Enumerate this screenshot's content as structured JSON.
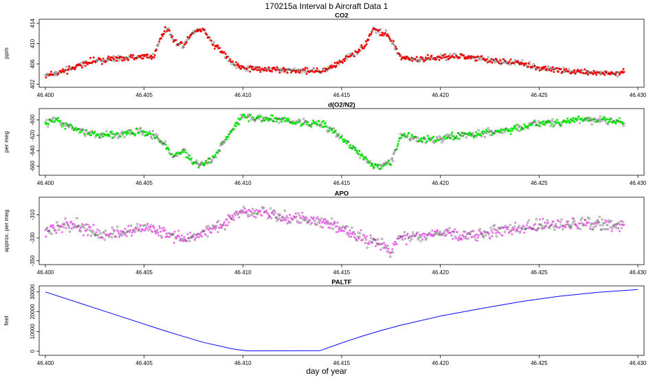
{
  "figure": {
    "title": "170215a   Interval b Aircraft Data 1",
    "xlabel": "day of year"
  },
  "chart_data": [
    {
      "type": "scatter",
      "title": "CO2",
      "ylabel": "ppm",
      "color": "#ff0000",
      "xlim": [
        46.4,
        46.43
      ],
      "ylim": [
        401.8,
        414.4
      ],
      "xticks": [
        46.4,
        46.405,
        46.41,
        46.415,
        46.42,
        46.425,
        46.43
      ],
      "xtick_labels": [
        "46.400",
        "46.405",
        "46.410",
        "46.415",
        "46.420",
        "46.425",
        "46.430"
      ],
      "yticks": [
        402,
        406,
        410,
        414
      ],
      "ytick_labels": [
        "402",
        "406",
        "410",
        "414"
      ],
      "series": [
        {
          "x": [
            46.4,
            46.401,
            46.402,
            46.403,
            46.404,
            46.405,
            46.4055,
            46.4058,
            46.4062,
            46.4065,
            46.407,
            46.4075,
            46.408,
            46.4085,
            46.409,
            46.4095,
            46.41,
            46.411,
            46.412,
            46.413,
            46.414,
            46.4145,
            46.415,
            46.4155,
            46.416,
            46.4163,
            46.4166,
            46.417,
            46.4173,
            46.4176,
            46.418,
            46.419,
            46.42,
            46.421,
            46.422,
            46.423,
            46.424,
            46.425,
            46.426,
            46.427,
            46.428,
            46.429,
            46.4293
          ],
          "y": [
            403.8,
            404.5,
            406.2,
            406.8,
            407.1,
            407.5,
            407.4,
            411.0,
            413.2,
            410.5,
            409.8,
            412.5,
            412.8,
            410.0,
            408.2,
            406.0,
            405.2,
            405.0,
            404.8,
            404.7,
            404.6,
            405.3,
            406.5,
            407.8,
            409.0,
            410.5,
            413.0,
            412.0,
            411.8,
            410.0,
            407.2,
            407.0,
            407.2,
            407.5,
            407.0,
            406.5,
            406.2,
            405.2,
            404.8,
            404.5,
            404.2,
            404.0,
            404.5
          ]
        }
      ]
    },
    {
      "type": "scatter",
      "title": "d(O2/N2)",
      "ylabel": "per meg",
      "color": "#00ee00",
      "xlim": [
        46.4,
        46.43
      ],
      "ylim": [
        -669,
        -588
      ],
      "xticks": [
        46.4,
        46.405,
        46.41,
        46.415,
        46.42,
        46.425,
        46.43
      ],
      "xtick_labels": [
        "46.400",
        "46.405",
        "46.410",
        "46.415",
        "46.420",
        "46.425",
        "46.430"
      ],
      "yticks": [
        -660,
        -640,
        -620,
        -600
      ],
      "ytick_labels": [
        "-660",
        "-640",
        "-620",
        "-600"
      ],
      "series": [
        {
          "x": [
            46.4,
            46.4005,
            46.401,
            46.402,
            46.403,
            46.404,
            46.405,
            46.4055,
            46.406,
            46.4065,
            46.407,
            46.4075,
            46.408,
            46.4085,
            46.409,
            46.4095,
            46.41,
            46.411,
            46.412,
            46.413,
            46.414,
            46.4145,
            46.415,
            46.4155,
            46.416,
            46.4165,
            46.417,
            46.4175,
            46.418,
            46.419,
            46.42,
            46.421,
            46.422,
            46.423,
            46.424,
            46.425,
            46.426,
            46.427,
            46.428,
            46.429,
            46.4293
          ],
          "y": [
            -606,
            -598,
            -607,
            -616,
            -620,
            -618,
            -615,
            -620,
            -630,
            -648,
            -640,
            -655,
            -657,
            -650,
            -630,
            -610,
            -596,
            -598,
            -600,
            -603,
            -606,
            -612,
            -622,
            -635,
            -645,
            -658,
            -660,
            -655,
            -620,
            -625,
            -625,
            -620,
            -618,
            -615,
            -610,
            -605,
            -604,
            -600,
            -600,
            -602,
            -604
          ]
        }
      ]
    },
    {
      "type": "scatter",
      "title": "APO",
      "ylabel": "approx. per meg",
      "color": "#ee66ee",
      "xlim": [
        46.4,
        46.43
      ],
      "ylim": [
        -351.5,
        -296.5
      ],
      "xticks": [
        46.4,
        46.405,
        46.41,
        46.415,
        46.42,
        46.425,
        46.43
      ],
      "xtick_labels": [
        "46.400",
        "46.405",
        "46.410",
        "46.415",
        "46.420",
        "46.425",
        "46.430"
      ],
      "yticks": [
        -350,
        -330,
        -310
      ],
      "ytick_labels": [
        "-350",
        "-330",
        "-310"
      ],
      "series": [
        {
          "x": [
            46.4,
            46.401,
            46.402,
            46.403,
            46.404,
            46.405,
            46.406,
            46.407,
            46.408,
            46.409,
            46.41,
            46.411,
            46.412,
            46.413,
            46.414,
            46.415,
            46.416,
            46.417,
            46.4175,
            46.418,
            46.419,
            46.42,
            46.421,
            46.422,
            46.423,
            46.424,
            46.425,
            46.426,
            46.427,
            46.428,
            46.429,
            46.4293
          ],
          "y": [
            -325,
            -318,
            -322,
            -328,
            -325,
            -320,
            -326,
            -330,
            -325,
            -318,
            -306,
            -308,
            -312,
            -314,
            -316,
            -322,
            -330,
            -336,
            -340,
            -330,
            -328,
            -326,
            -328,
            -327,
            -324,
            -322,
            -320,
            -319,
            -318,
            -318,
            -320,
            -318
          ]
        }
      ]
    },
    {
      "type": "line",
      "title": "PALTF",
      "ylabel": "feet",
      "color": "#0000ff",
      "xlim": [
        46.4,
        46.43
      ],
      "ylim": [
        -1000,
        32000
      ],
      "xticks": [
        46.4,
        46.405,
        46.41,
        46.415,
        46.42,
        46.425,
        46.43
      ],
      "xtick_labels": [
        "46.400",
        "46.405",
        "46.410",
        "46.415",
        "46.420",
        "46.425",
        "46.430"
      ],
      "yticks": [
        0,
        10000,
        20000,
        30000
      ],
      "ytick_labels": [
        "0",
        "10000",
        "20000",
        "30000"
      ],
      "series": [
        {
          "x": [
            46.4,
            46.402,
            46.404,
            46.406,
            46.408,
            46.4095,
            46.4102,
            46.412,
            46.4139,
            46.415,
            46.416,
            46.417,
            46.418,
            46.42,
            46.422,
            46.424,
            46.426,
            46.428,
            46.43
          ],
          "y": [
            30000,
            23500,
            17000,
            10500,
            4500,
            1200,
            200,
            250,
            300,
            4200,
            7500,
            10500,
            13200,
            17800,
            21500,
            25000,
            27800,
            29800,
            31200
          ]
        }
      ]
    }
  ]
}
